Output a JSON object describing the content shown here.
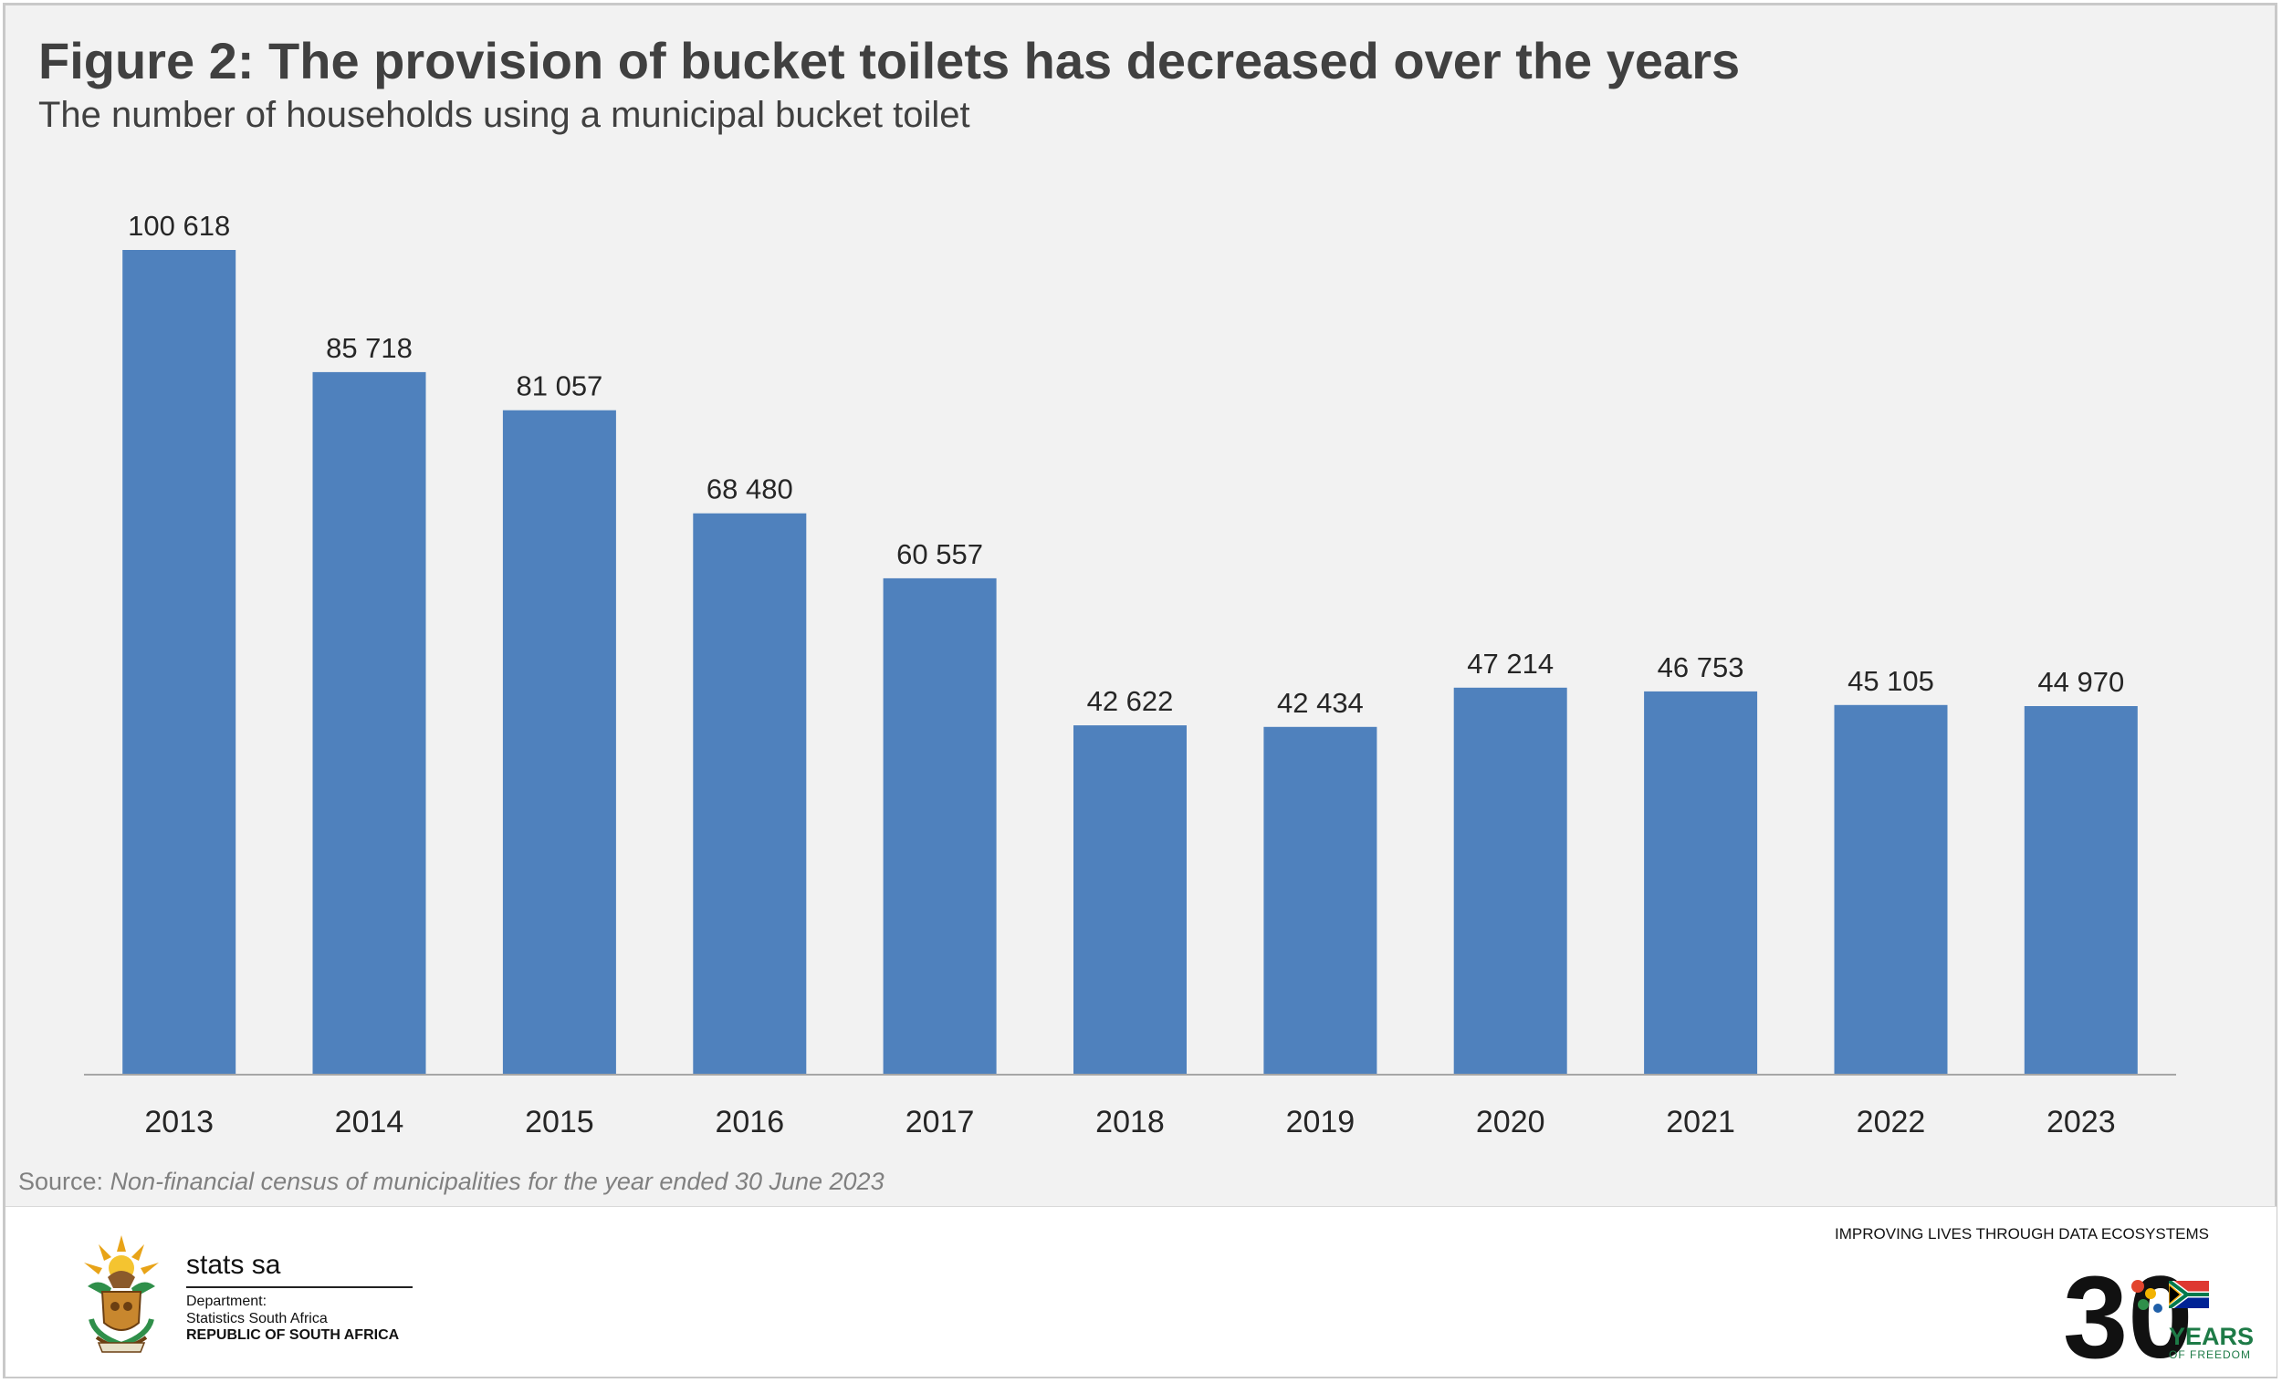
{
  "header": {
    "title": "Figure 2: The provision of bucket toilets has decreased over the years",
    "subtitle": "The number of households using a municipal bucket toilet"
  },
  "chart_data": {
    "type": "bar",
    "categories": [
      "2013",
      "2014",
      "2015",
      "2016",
      "2017",
      "2018",
      "2019",
      "2020",
      "2021",
      "2022",
      "2023"
    ],
    "values": [
      100618,
      85718,
      81057,
      68480,
      60557,
      42622,
      42434,
      47214,
      46753,
      45105,
      44970
    ],
    "data_labels": [
      "100 618",
      "85 718",
      "81 057",
      "68 480",
      "60 557",
      "42 622",
      "42 434",
      "47 214",
      "46 753",
      "45 105",
      "44 970"
    ],
    "ylim": [
      0,
      100618
    ],
    "grid": false,
    "legend": "none",
    "bar_color": "#4f81bd"
  },
  "source": {
    "prefix": "Source: ",
    "text": "Non-financial census of municipalities for the year ended 30 June 2023"
  },
  "footer": {
    "org_name": "stats sa",
    "dept_line1": "Department:",
    "dept_line2": "Statistics South Africa",
    "dept_line3": "REPUBLIC OF SOUTH AFRICA",
    "tagline": "IMPROVING LIVES THROUGH DATA ECOSYSTEMS",
    "anniversary_number": "30",
    "anniversary_years": "YEARS",
    "anniversary_sub": "OF FREEDOM"
  },
  "colors": {
    "background": "#f2f2f2",
    "title": "#404040",
    "bar": "#4f81bd",
    "axis": "#a6a6a6",
    "green": "#1e7b47"
  },
  "icons": {
    "coat_of_arms": "coat-of-arms-icon",
    "flag": "south-africa-flag-icon"
  }
}
